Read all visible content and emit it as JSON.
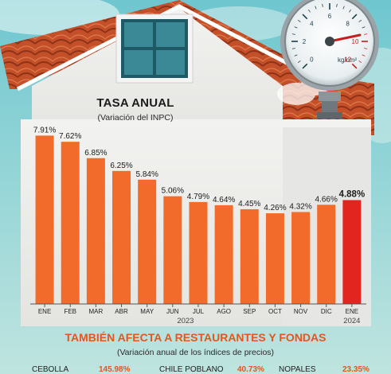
{
  "chart_data": {
    "type": "bar",
    "title": "TASA ANUAL",
    "subtitle": "(Variación del INPC)",
    "categories": [
      "ENE",
      "FEB",
      "MAR",
      "ABR",
      "MAY",
      "JUN",
      "JUL",
      "AGO",
      "SEP",
      "OCT",
      "NOV",
      "DIC",
      "ENE"
    ],
    "values": [
      7.91,
      7.62,
      6.85,
      6.25,
      5.84,
      5.06,
      4.79,
      4.64,
      4.45,
      4.26,
      4.32,
      4.66,
      4.88
    ],
    "value_labels": [
      "7.91%",
      "7.62%",
      "6.85%",
      "6.25%",
      "5.84%",
      "5.06%",
      "4.79%",
      "4.64%",
      "4.45%",
      "4.26%",
      "4.32%",
      "4.66%",
      "4.88%"
    ],
    "year_labels": [
      "2023",
      "2024"
    ],
    "xlabel": "",
    "ylabel": "",
    "ylim": [
      0,
      8
    ],
    "highlight_index": 12,
    "colors": {
      "bar": "#f26b2a",
      "highlight": "#e32520"
    }
  },
  "gauge": {
    "unit_label": "kg/cm²",
    "scale_labels": [
      "0",
      "2",
      "4",
      "6",
      "8",
      "10",
      "12"
    ]
  },
  "section2": {
    "title": "TAMBIÉN AFECTA A RESTAURANTES Y FONDAS",
    "subtitle": "(Variación anual de los índices de precios)",
    "items": [
      {
        "label": "CEBOLLA",
        "value": "145.98%"
      },
      {
        "label": "CHILE POBLANO",
        "value": "40.73%"
      },
      {
        "label": "NOPALES",
        "value": "23.35%"
      }
    ]
  },
  "colors": {
    "sky": "#7fcfd4",
    "roof": "#c8532d",
    "wall": "#ececea",
    "title_orange": "#e4561f"
  }
}
